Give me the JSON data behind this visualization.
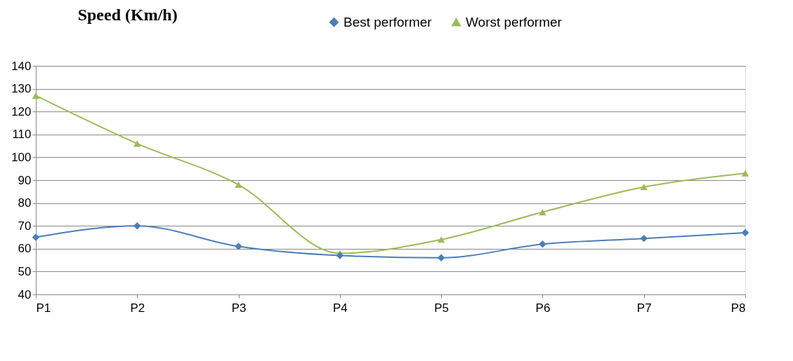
{
  "chart_data": {
    "type": "line",
    "title": "Speed (Km/h)",
    "categories": [
      "P1",
      "P2",
      "P3",
      "P4",
      "P5",
      "P6",
      "P7",
      "P8"
    ],
    "series": [
      {
        "name": "Best performer",
        "color": "#4a7ebb",
        "marker": "diamond",
        "values": [
          65,
          70,
          61,
          57,
          56,
          62,
          64.5,
          67
        ]
      },
      {
        "name": "Worst performer",
        "color": "#9bbb59",
        "marker": "triangle",
        "values": [
          127,
          106,
          88,
          58,
          64,
          76,
          87,
          93
        ]
      }
    ],
    "ylim": [
      40,
      140
    ],
    "yticks": [
      40,
      50,
      60,
      70,
      80,
      90,
      100,
      110,
      120,
      130,
      140
    ],
    "grid": "y",
    "legend": "top right",
    "line_style": "solid"
  }
}
